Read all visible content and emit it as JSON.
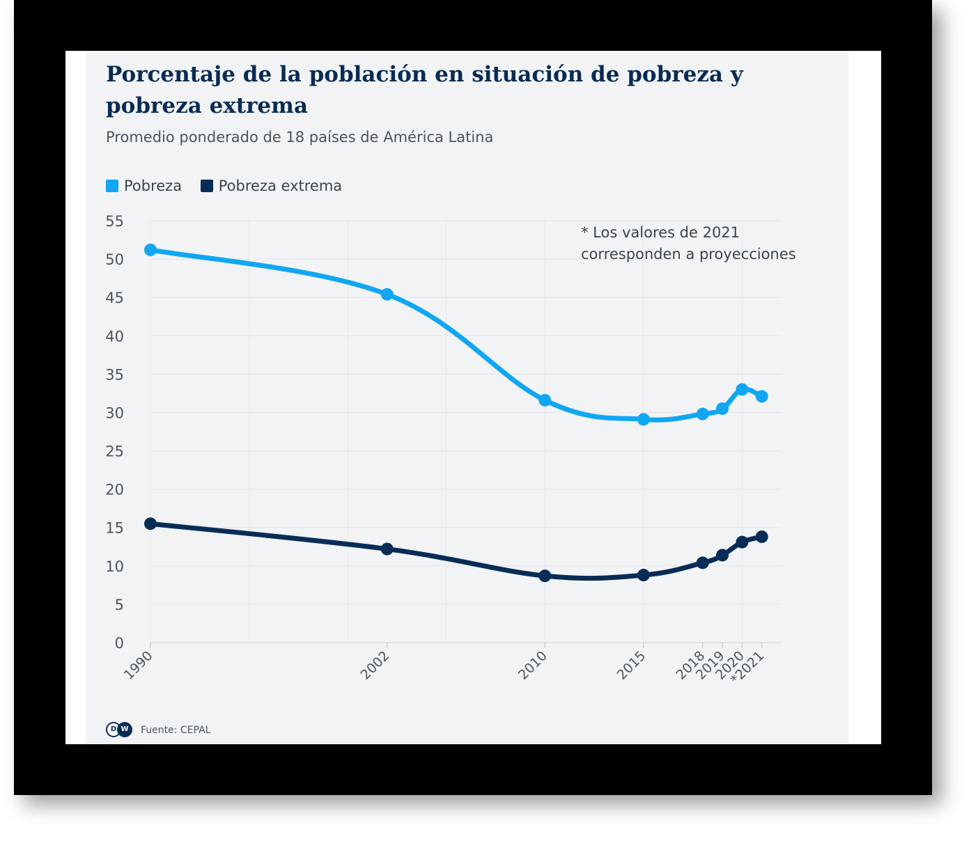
{
  "chart_data": {
    "type": "line",
    "title": "Porcentaje de la población en situación de pobreza y pobreza extrema",
    "subtitle": "Promedio ponderado de 18 países de América Latina",
    "categories": [
      "1990",
      "2002",
      "2010",
      "2015",
      "2018",
      "2019",
      "2020",
      "*2021"
    ],
    "x": [
      1990,
      2002,
      2010,
      2015,
      2018,
      2019,
      2020,
      2021
    ],
    "series": [
      {
        "name": "Pobreza",
        "color": "#11a6f2",
        "values": [
          51.2,
          45.4,
          31.6,
          29.1,
          29.8,
          30.5,
          33.0,
          32.1
        ]
      },
      {
        "name": "Pobreza extrema",
        "color": "#082c56",
        "values": [
          15.5,
          12.2,
          8.7,
          8.8,
          10.4,
          11.4,
          13.1,
          13.8
        ]
      }
    ],
    "yticks": [
      "0",
      "5",
      "10",
      "15",
      "20",
      "25",
      "30",
      "35",
      "40",
      "45",
      "50",
      "55"
    ],
    "ylim": [
      0,
      55
    ],
    "xlabel": "",
    "ylabel": "",
    "grid": true,
    "legend_position": "top-left",
    "annotation": [
      "* Los valores de 2021",
      "corresponden a proyecciones"
    ]
  },
  "source": "Fuente: CEPAL",
  "logo_text": [
    "D",
    "W"
  ]
}
